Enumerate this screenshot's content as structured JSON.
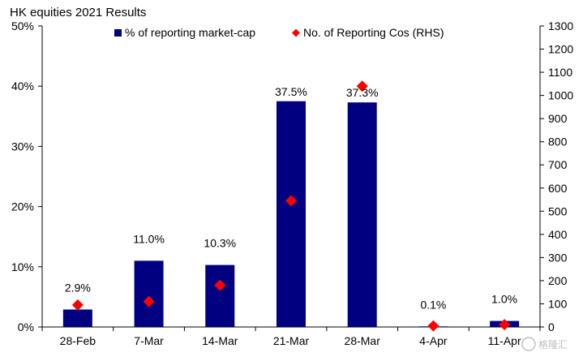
{
  "chart_data": {
    "type": "bar",
    "title": "HK equities 2021 Results",
    "categories": [
      "28-Feb",
      "7-Mar",
      "14-Mar",
      "21-Mar",
      "28-Mar",
      "4-Apr",
      "11-Apr"
    ],
    "series": [
      {
        "name": "% of reporting market-cap",
        "type": "bar",
        "axis": "left",
        "values": [
          2.9,
          11.0,
          10.3,
          37.5,
          37.3,
          0.1,
          1.0
        ],
        "labels": [
          "2.9%",
          "11.0%",
          "10.3%",
          "37.5%",
          "37.3%",
          "0.1%",
          "1.0%"
        ],
        "color": "#000080"
      },
      {
        "name": "No. of Reporting Cos (RHS)",
        "type": "scatter",
        "axis": "right",
        "values": [
          95,
          110,
          180,
          545,
          1040,
          5,
          10
        ],
        "color": "#ff0000"
      }
    ],
    "y_left": {
      "min": 0,
      "max": 50,
      "ticks": [
        "0%",
        "10%",
        "20%",
        "30%",
        "40%",
        "50%"
      ]
    },
    "y_right": {
      "min": 0,
      "max": 1300,
      "ticks": [
        "0",
        "100",
        "200",
        "300",
        "400",
        "500",
        "600",
        "700",
        "800",
        "900",
        "1000",
        "1100",
        "1200",
        "1300"
      ]
    },
    "grid": false,
    "legend": "top"
  },
  "watermark": {
    "icon": "gelonghui-logo-icon",
    "text": "格隆汇"
  }
}
